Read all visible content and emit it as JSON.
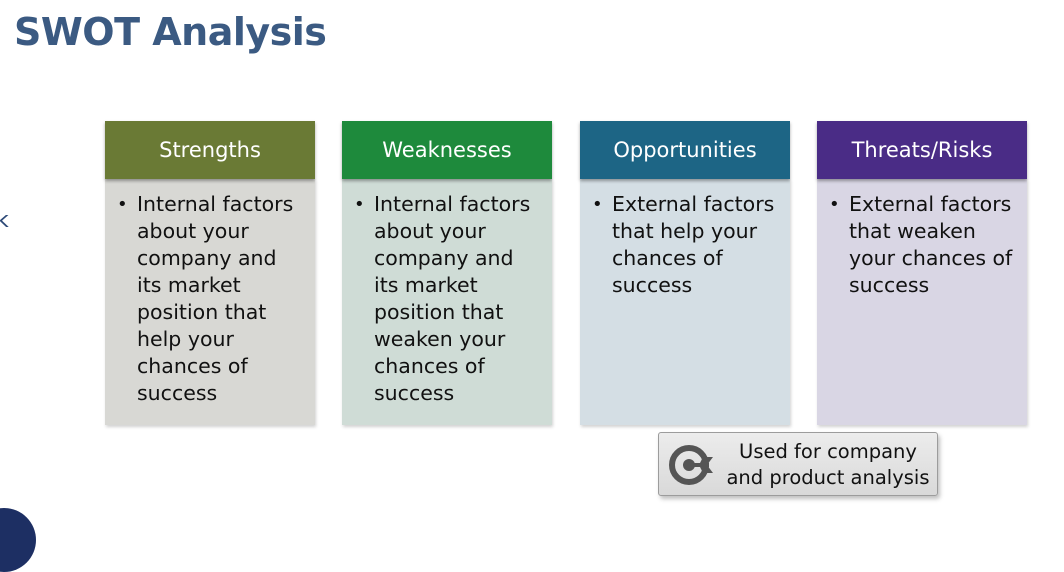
{
  "title": "SWOT Analysis",
  "edge_glyph": "k",
  "columns": [
    {
      "header": "Strengths",
      "header_color": "#6a7a35",
      "body_color": "#d8d8d4",
      "text": "Internal factors about your company and its market position that help your chances of success"
    },
    {
      "header": "Weaknesses",
      "header_color": "#1e8a3c",
      "body_color": "#cfdcd6",
      "text": "Internal factors about your company and its market position that weaken your chances of success"
    },
    {
      "header": "Opportunities",
      "header_color": "#1d6585",
      "body_color": "#d4dee4",
      "text": "External factors that help your chances of success"
    },
    {
      "header": "Threats/Risks",
      "header_color": "#4a2c86",
      "body_color": "#d9d6e4",
      "text": "External factors that weaken your chances of success"
    }
  ],
  "note": {
    "icon": "target-arrow-icon",
    "text": "Used for company and product analysis"
  },
  "colors": {
    "title": "#3b5a82",
    "edge_circle": "#1d2f63"
  }
}
